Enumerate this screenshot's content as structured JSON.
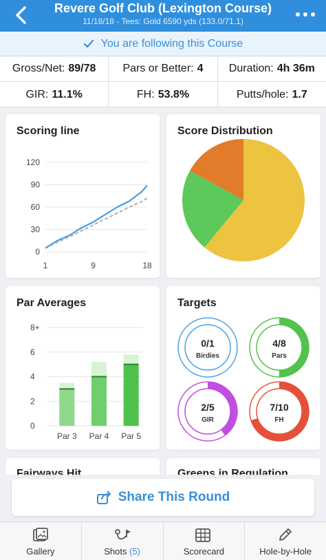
{
  "header": {
    "title": "Revere Golf Club (Lexington Course)",
    "subtitle": "11/18/18 - Tees: Gold 6590 yds (133.0/71.1)",
    "back_icon": "chevron-left-icon",
    "more_icon": "more-horizontal-icon"
  },
  "following": {
    "text": "You are following this Course",
    "icon": "checkmark-icon"
  },
  "stats": {
    "row1": [
      {
        "label": "Gross/Net:",
        "value": "89/78"
      },
      {
        "label": "Pars or Better:",
        "value": "4"
      },
      {
        "label": "Duration:",
        "value": "4h 36m"
      }
    ],
    "row2": [
      {
        "label": "GIR:",
        "value": "11.1%"
      },
      {
        "label": "FH:",
        "value": "53.8%"
      },
      {
        "label": "Putts/hole:",
        "value": "1.7"
      }
    ]
  },
  "cards": {
    "scoring_line": "Scoring line",
    "score_distribution": "Score Distribution",
    "par_averages": "Par Averages",
    "targets": "Targets",
    "fairways_hit": "Fairways Hit",
    "greens_in_regulation": "Greens in Regulation"
  },
  "chart_data": [
    {
      "type": "line",
      "title": "Scoring line",
      "x": [
        1,
        3,
        5,
        7,
        9,
        11,
        13,
        15,
        17,
        18
      ],
      "x_ticks": [
        "1",
        "9",
        "18"
      ],
      "y_ticks": [
        "0",
        "30",
        "60",
        "90",
        "120"
      ],
      "ylim": [
        0,
        120
      ],
      "grid": true,
      "series": [
        {
          "values": [
            5,
            15,
            22,
            32,
            40,
            50,
            60,
            68,
            80,
            89
          ],
          "color": "#4a9de0",
          "style": "solid"
        },
        {
          "values": [
            5,
            13,
            20,
            28,
            36,
            44,
            52,
            60,
            67,
            72
          ],
          "color": "#b5b5b5",
          "style": "dashed"
        }
      ]
    },
    {
      "type": "pie",
      "title": "Score Distribution",
      "slices": [
        {
          "value": 61,
          "color": "#ecc440"
        },
        {
          "value": 22,
          "color": "#5cc95a"
        },
        {
          "value": 17,
          "color": "#e27b2a"
        }
      ]
    },
    {
      "type": "bar",
      "title": "Par Averages",
      "categories": [
        "Par 3",
        "Par 4",
        "Par 5"
      ],
      "values": [
        3.0,
        4.0,
        5.0
      ],
      "max_values": [
        3.5,
        5.2,
        5.8
      ],
      "y_ticks": [
        "0",
        "2",
        "4",
        "6",
        "8+"
      ],
      "ylim": [
        0,
        8
      ],
      "colors": [
        "#8fd98b",
        "#6fd06b",
        "#4fc24b"
      ],
      "max_color": "#d8f4d5"
    }
  ],
  "targets": [
    {
      "value": "0/1",
      "label": "Birdies",
      "fraction": 0.0,
      "color": "#4aa3e6"
    },
    {
      "value": "4/8",
      "label": "Pars",
      "fraction": 0.5,
      "color": "#53c24c"
    },
    {
      "value": "2/5",
      "label": "GIR",
      "fraction": 0.4,
      "color": "#c04ee0"
    },
    {
      "value": "7/10",
      "label": "FH",
      "fraction": 0.7,
      "color": "#e4513a"
    }
  ],
  "share": {
    "label": "Share This Round",
    "icon": "share-icon"
  },
  "tabbar": [
    {
      "label": "Gallery",
      "icon": "gallery-icon"
    },
    {
      "label": "Shots",
      "count": "(5)",
      "icon": "shots-pin-icon"
    },
    {
      "label": "Scorecard",
      "icon": "scorecard-icon"
    },
    {
      "label": "Hole-by-Hole",
      "icon": "pencil-icon"
    }
  ]
}
